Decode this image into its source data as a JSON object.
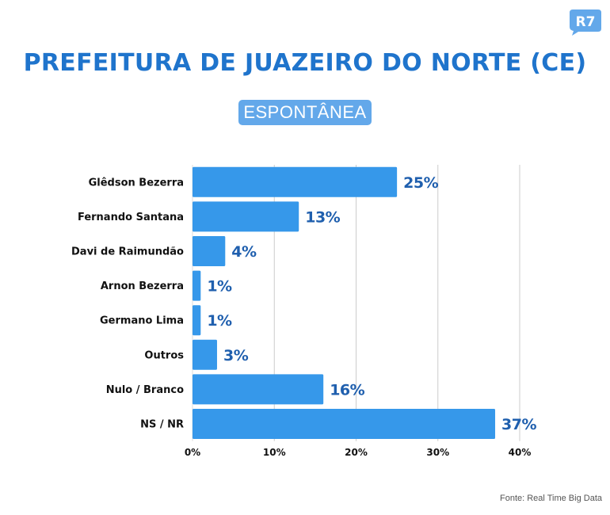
{
  "brand": {
    "logo_text": "R7",
    "color": "#63a8ea"
  },
  "header": {
    "title": "PREFEITURA DE JUAZEIRO DO NORTE (CE)",
    "subtitle": "ESPONTÂNEA"
  },
  "footer": {
    "source": "Fonte: Real Time Big Data"
  },
  "colors": {
    "bar": "#3698ea",
    "value_label": "#1f5fae",
    "title": "#1f74cc",
    "grid": "#cccccc"
  },
  "chart_data": {
    "type": "bar",
    "orientation": "horizontal",
    "categories": [
      "Glêdson Bezerra",
      "Fernando Santana",
      "Davi de Raimundão",
      "Arnon Bezerra",
      "Germano Lima",
      "Outros",
      "Nulo / Branco",
      "NS / NR"
    ],
    "values": [
      25,
      13,
      4,
      1,
      1,
      3,
      16,
      37
    ],
    "value_labels": [
      "25%",
      "13%",
      "4%",
      "1%",
      "1%",
      "3%",
      "16%",
      "37%"
    ],
    "xlim": [
      0,
      40
    ],
    "xticks": [
      0,
      10,
      20,
      30,
      40
    ],
    "xtick_labels": [
      "0%",
      "10%",
      "20%",
      "30%",
      "40%"
    ],
    "grid": true,
    "title": "PREFEITURA DE JUAZEIRO DO NORTE (CE)",
    "subtitle": "ESPONTÂNEA"
  }
}
